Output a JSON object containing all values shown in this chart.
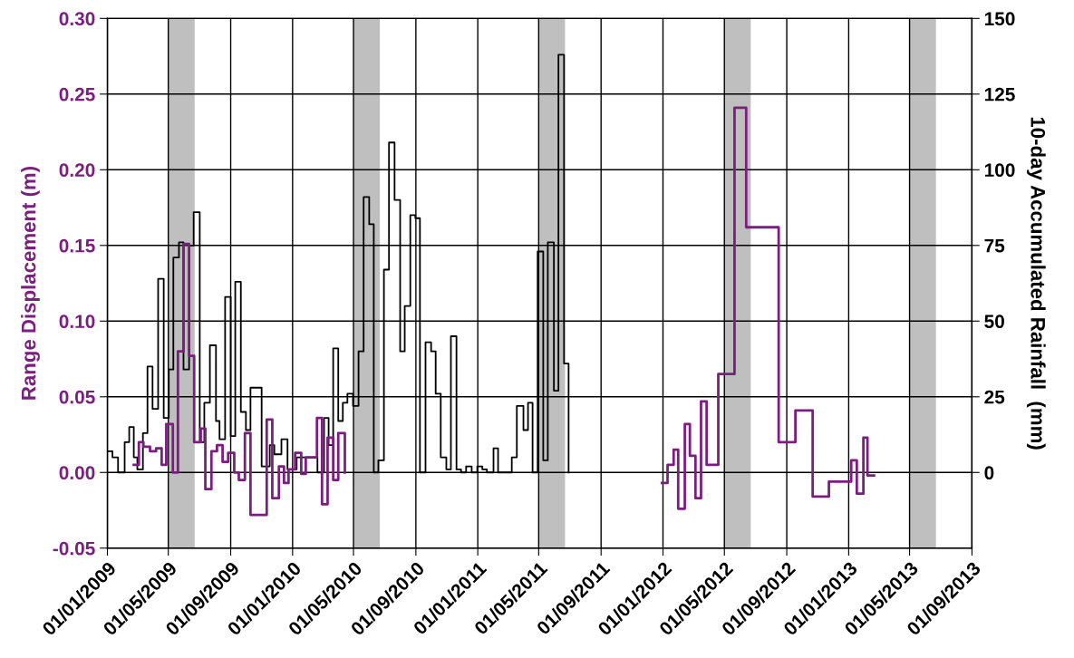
{
  "chart_data": {
    "type": "step",
    "ylabel": "Range Displacement (m)",
    "y2label": "10-day Accumulated Rainfall  (mm)",
    "xlim": [
      "2009-01-01",
      "2013-09-01"
    ],
    "xticks": [
      {
        "value": "2009-01-01",
        "label": "01/01/2009"
      },
      {
        "value": "2009-05-01",
        "label": "01/05/2009"
      },
      {
        "value": "2009-09-01",
        "label": "01/09/2009"
      },
      {
        "value": "2010-01-01",
        "label": "01/01/2010"
      },
      {
        "value": "2010-05-01",
        "label": "01/05/2010"
      },
      {
        "value": "2010-09-01",
        "label": "01/09/2010"
      },
      {
        "value": "2011-01-01",
        "label": "01/01/2011"
      },
      {
        "value": "2011-05-01",
        "label": "01/05/2011"
      },
      {
        "value": "2011-09-01",
        "label": "01/09/2011"
      },
      {
        "value": "2012-01-01",
        "label": "01/01/2012"
      },
      {
        "value": "2012-05-01",
        "label": "01/05/2012"
      },
      {
        "value": "2012-09-01",
        "label": "01/09/2012"
      },
      {
        "value": "2013-01-01",
        "label": "01/01/2013"
      },
      {
        "value": "2013-05-01",
        "label": "01/05/2013"
      },
      {
        "value": "2013-09-01",
        "label": "01/09/2013"
      }
    ],
    "ylim": [
      -0.05,
      0.3
    ],
    "yticks": [
      {
        "value": -0.05,
        "label": "-0.05"
      },
      {
        "value": 0,
        "label": "0.00"
      },
      {
        "value": 0.05,
        "label": "0.05"
      },
      {
        "value": 0.1,
        "label": "0.10"
      },
      {
        "value": 0.15,
        "label": "0.15"
      },
      {
        "value": 0.2,
        "label": "0.20"
      },
      {
        "value": 0.25,
        "label": "0.25"
      },
      {
        "value": 0.3,
        "label": "0.30"
      }
    ],
    "y2lim": [
      -25,
      150
    ],
    "y2ticks": [
      0,
      25,
      50,
      75,
      100,
      125,
      150
    ],
    "grid": true,
    "bands": [
      {
        "axis": "x",
        "from": "2009-05-01",
        "to": "2009-06-22",
        "color": "#bfbfbf"
      },
      {
        "axis": "x",
        "from": "2010-05-01",
        "to": "2010-06-22",
        "color": "#bfbfbf"
      },
      {
        "axis": "x",
        "from": "2011-05-01",
        "to": "2011-06-22",
        "color": "#bfbfbf"
      },
      {
        "axis": "x",
        "from": "2012-05-01",
        "to": "2012-06-22",
        "color": "#bfbfbf"
      },
      {
        "axis": "x",
        "from": "2013-05-01",
        "to": "2013-06-22",
        "color": "#bfbfbf"
      }
    ],
    "series": [
      {
        "color": "#000000",
        "axis": "y2",
        "x": [
          "2009-01-01",
          "2009-01-11",
          "2009-01-22",
          "2009-02-04",
          "2009-02-13",
          "2009-02-22",
          "2009-03-01",
          "2009-03-12",
          "2009-03-21",
          "2009-03-31",
          "2009-04-11",
          "2009-04-22",
          "2009-05-02",
          "2009-05-11",
          "2009-05-22",
          "2009-05-31",
          "2009-06-11",
          "2009-06-20",
          "2009-07-02",
          "2009-07-11",
          "2009-07-22",
          "2009-08-03",
          "2009-08-10",
          "2009-08-21",
          "2009-09-01",
          "2009-09-10",
          "2009-09-21",
          "2009-10-01",
          "2009-10-10",
          "2009-11-01",
          "2009-11-17",
          "2009-11-26",
          "2009-12-10",
          "2009-12-22",
          "2010-01-09",
          "2010-02-01",
          "2010-02-19",
          "2010-03-04",
          "2010-03-13",
          "2010-03-22",
          "2010-04-01",
          "2010-04-10",
          "2010-04-19",
          "2010-04-30",
          "2010-05-11",
          "2010-05-21",
          "2010-06-01",
          "2010-06-10",
          "2010-06-19",
          "2010-06-30",
          "2010-07-10",
          "2010-07-21",
          "2010-08-01",
          "2010-08-10",
          "2010-08-21",
          "2010-08-31",
          "2010-09-09",
          "2010-09-20",
          "2010-10-01",
          "2010-10-10",
          "2010-10-20",
          "2010-10-31",
          "2010-11-09",
          "2010-11-20",
          "2010-11-29",
          "2010-12-09",
          "2010-12-20",
          "2010-12-31",
          "2011-01-10",
          "2011-01-19",
          "2011-02-01",
          "2011-02-10",
          "2011-03-09",
          "2011-03-19",
          "2011-04-01",
          "2011-04-10",
          "2011-04-19",
          "2011-04-29",
          "2011-05-10",
          "2011-05-19",
          "2011-05-31",
          "2011-06-09",
          "2011-06-20",
          "2011-06-29"
        ],
        "values": [
          7,
          5,
          0,
          10,
          15,
          5,
          1,
          13,
          35,
          21,
          64,
          18,
          34,
          71,
          76,
          34,
          75,
          86,
          10,
          23,
          42,
          17,
          11,
          58,
          12,
          63,
          20,
          14,
          28,
          2,
          9,
          6,
          11,
          1,
          5,
          5,
          0,
          18,
          9,
          41,
          17,
          23,
          26,
          22,
          40,
          91,
          82,
          0,
          4,
          67,
          109,
          90,
          40,
          55,
          85,
          84,
          0,
          43,
          40,
          26,
          5,
          1,
          45,
          1,
          0,
          2,
          0,
          2,
          1,
          0,
          8,
          0,
          5,
          22,
          14,
          23,
          0,
          73,
          4,
          76,
          27,
          138,
          36,
          0
        ]
      },
      {
        "color": "#7b1f7f",
        "x": [
          "2009-02-22",
          "2009-03-04",
          "2009-03-13",
          "2009-03-26",
          "2009-04-07",
          "2009-04-18",
          "2009-04-27",
          "2009-05-10",
          "2009-05-20",
          "2009-05-31",
          "2009-06-11",
          "2009-06-21",
          "2009-07-04",
          "2009-07-13",
          "2009-07-25",
          "2009-08-05",
          "2009-08-16",
          "2009-08-27",
          "2009-09-08",
          "2009-09-17",
          "2009-09-29",
          "2009-10-10",
          "2009-11-11",
          "2009-11-22",
          "2009-12-05",
          "2009-12-15",
          "2009-12-24",
          "2010-01-06",
          "2010-01-18",
          "2010-01-27",
          "2010-02-18",
          "2010-02-28",
          "2010-03-11",
          "2010-03-22",
          "2010-04-01",
          "2010-04-14"
        ],
        "values": [
          0.005,
          0.02,
          0.017,
          0.014,
          0.016,
          0.005,
          0.032,
          0.0,
          0.08,
          0.151,
          0.077,
          0.02,
          0.029,
          -0.011,
          0.014,
          0.018,
          0.007,
          0.013,
          0.0,
          -0.005,
          0.026,
          -0.028,
          0.035,
          -0.017,
          0.004,
          -0.007,
          0.002,
          0.013,
          -0.001,
          0.01,
          0.036,
          -0.021,
          0.023,
          -0.005,
          0.026,
          0.0
        ]
      },
      {
        "color": "#7b1f7f",
        "x": [
          "2011-12-30",
          "2012-01-10",
          "2012-01-22",
          "2012-01-31",
          "2012-02-13",
          "2012-02-23",
          "2012-03-05",
          "2012-03-16",
          "2012-03-27",
          "2012-04-19",
          "2012-05-21",
          "2012-06-13",
          "2012-08-16",
          "2012-09-18",
          "2012-10-22",
          "2012-11-23",
          "2013-01-06",
          "2013-01-17",
          "2013-01-30",
          "2013-02-07",
          "2013-02-20"
        ],
        "values": [
          -0.007,
          0.005,
          0.015,
          -0.024,
          0.032,
          0.011,
          -0.017,
          0.047,
          0.005,
          0.065,
          0.241,
          0.162,
          0.02,
          0.041,
          -0.016,
          -0.006,
          0.008,
          -0.014,
          0.023,
          -0.002,
          -0.002
        ]
      }
    ]
  }
}
